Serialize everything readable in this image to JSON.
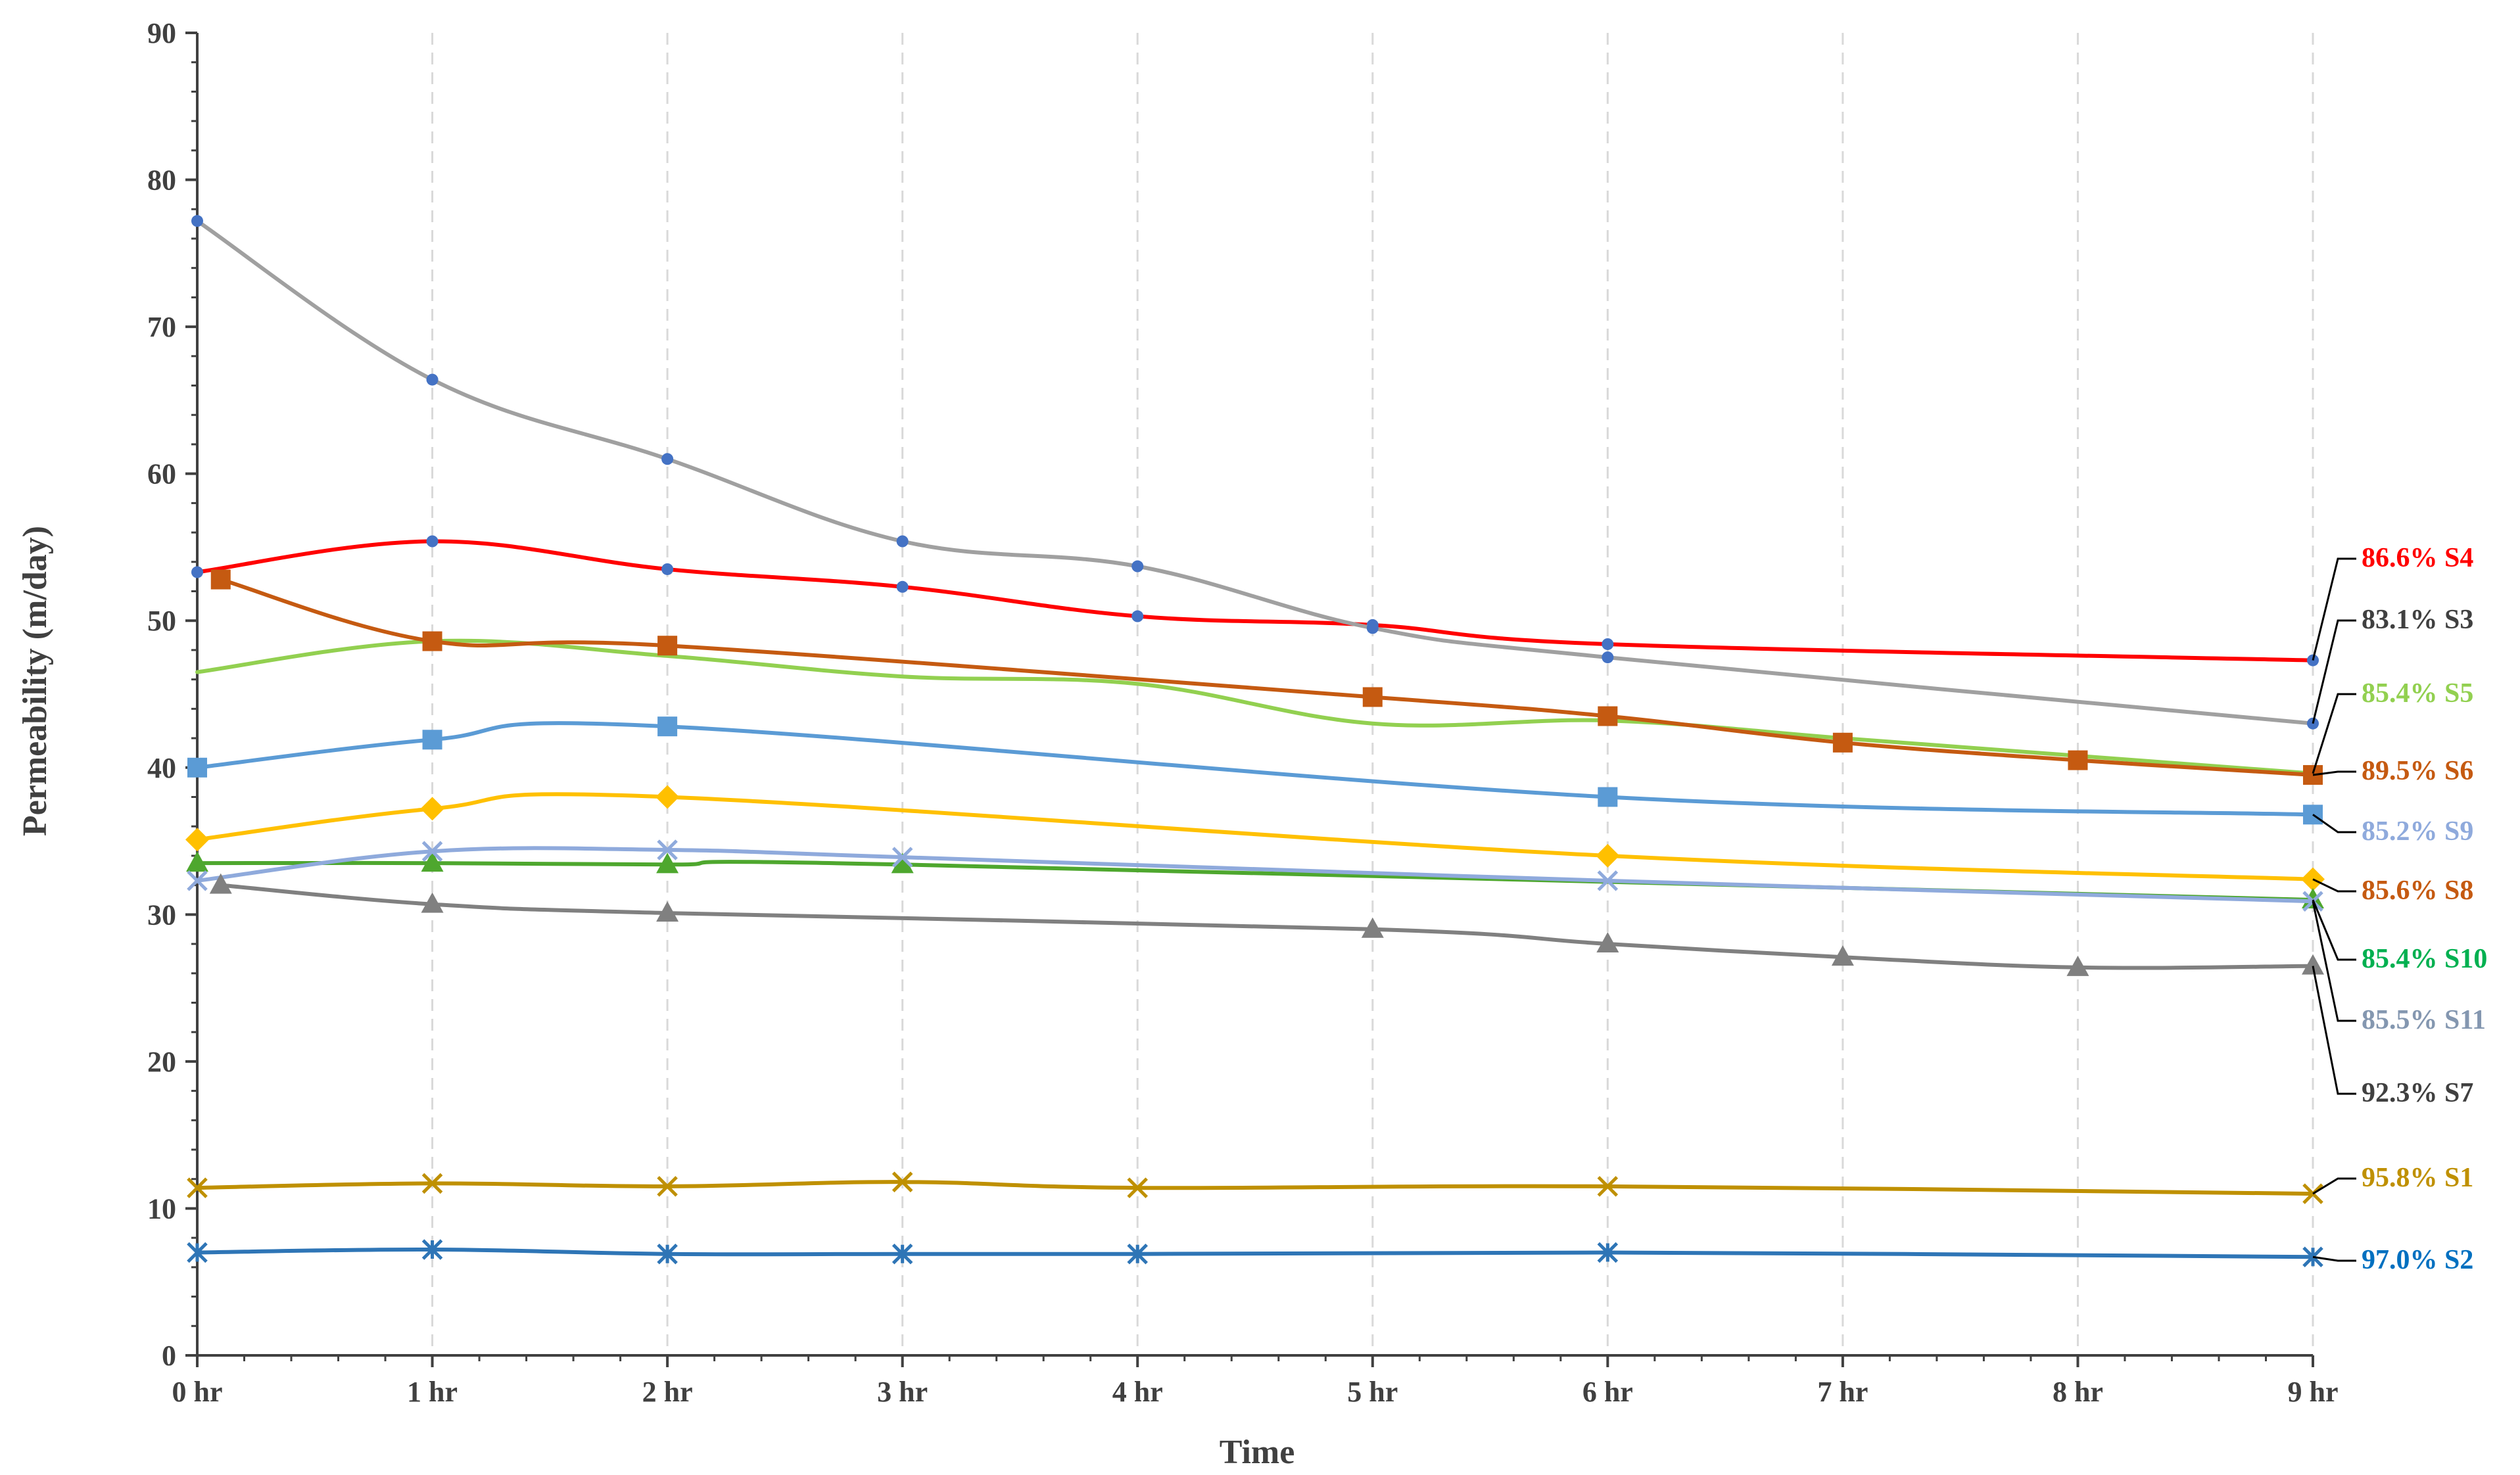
{
  "chart_data": {
    "type": "line",
    "title": "",
    "xlabel": "Time",
    "ylabel": "Permeability (m/day)",
    "categories": [
      "0 hr",
      "1 hr",
      "2 hr",
      "3 hr",
      "4 hr",
      "5 hr",
      "6 hr",
      "7 hr",
      "8 hr",
      "9 hr"
    ],
    "x_range": [
      0,
      9
    ],
    "ylim": [
      0,
      90
    ],
    "y_ticks": [
      "0",
      "10",
      "20",
      "30",
      "40",
      "50",
      "60",
      "70",
      "80",
      "90"
    ],
    "grid": "vertical dashed",
    "legend": "direct labels at right",
    "series": [
      {
        "name": "86.6% S4",
        "color": "#ff0000",
        "label_color": "#ff0000",
        "marker": "dot",
        "points": [
          [
            0,
            53.3
          ],
          [
            1,
            55.4
          ],
          [
            2,
            53.5
          ],
          [
            3,
            52.3
          ],
          [
            4,
            50.3
          ],
          [
            5,
            49.7
          ],
          [
            6,
            48.4
          ],
          [
            9,
            47.3
          ]
        ]
      },
      {
        "name": "83.1% S3",
        "color": "#a0a0a0",
        "label_color": "#404040",
        "marker": "dot",
        "points": [
          [
            0,
            77.2
          ],
          [
            1,
            66.4
          ],
          [
            2,
            61.0
          ],
          [
            3,
            55.4
          ],
          [
            4,
            53.7
          ],
          [
            5,
            49.5
          ],
          [
            6,
            47.5
          ],
          [
            9,
            43.0
          ]
        ]
      },
      {
        "name": "85.4% S5",
        "color": "#92d050",
        "label_color": "#92d050",
        "marker": "none",
        "points": [
          [
            0,
            46.5
          ],
          [
            1,
            48.6
          ],
          [
            2,
            47.6
          ],
          [
            3,
            46.2
          ],
          [
            4,
            45.7
          ],
          [
            5,
            43.0
          ],
          [
            6,
            43.2
          ],
          [
            7,
            42.0
          ],
          [
            8,
            40.8
          ],
          [
            9,
            39.6
          ]
        ]
      },
      {
        "name": "89.5% S6",
        "color": "#c55a11",
        "label_color": "#c55a11",
        "marker": "square",
        "points": [
          [
            0.1,
            52.8
          ],
          [
            1,
            48.6
          ],
          [
            2,
            48.3
          ],
          [
            5,
            44.8
          ],
          [
            6,
            43.5
          ],
          [
            7,
            41.7
          ],
          [
            8,
            40.5
          ],
          [
            9,
            39.5
          ]
        ]
      },
      {
        "name": "85.2% S9",
        "color": "#5b9bd5",
        "label_color": "#8faadc",
        "marker": "square",
        "points": [
          [
            0,
            40.0
          ],
          [
            1,
            41.9
          ],
          [
            2,
            42.8
          ],
          [
            6,
            38.0
          ],
          [
            9,
            36.8
          ]
        ]
      },
      {
        "name": "85.6% S8",
        "color": "#ffc000",
        "label_color": "#c55a11",
        "marker": "diamond",
        "points": [
          [
            0,
            35.1
          ],
          [
            1,
            37.2
          ],
          [
            2,
            38.0
          ],
          [
            6,
            34.0
          ],
          [
            9,
            32.4
          ]
        ]
      },
      {
        "name": "85.4% S10",
        "color": "#4ea72e",
        "label_color": "#00b050",
        "marker": "triangle",
        "points": [
          [
            0,
            33.5
          ],
          [
            1,
            33.5
          ],
          [
            2,
            33.4
          ],
          [
            3,
            33.4
          ],
          [
            9,
            31.0
          ]
        ]
      },
      {
        "name": "85.5% S11",
        "color": "#8faadc",
        "label_color": "#8497b0",
        "marker": "x",
        "points": [
          [
            0,
            32.3
          ],
          [
            1,
            34.3
          ],
          [
            2,
            34.4
          ],
          [
            3,
            33.9
          ],
          [
            6,
            32.3
          ],
          [
            9,
            30.9
          ]
        ]
      },
      {
        "name": "92.3% S7",
        "color": "#808080",
        "label_color": "#404040",
        "marker": "triangle",
        "points": [
          [
            0.1,
            32.0
          ],
          [
            1,
            30.7
          ],
          [
            2,
            30.1
          ],
          [
            5,
            29.0
          ],
          [
            6,
            28.0
          ],
          [
            7,
            27.1
          ],
          [
            8,
            26.4
          ],
          [
            9,
            26.5
          ]
        ]
      },
      {
        "name": "95.8% S1",
        "color": "#bf9000",
        "label_color": "#bf9000",
        "marker": "x",
        "points": [
          [
            0,
            11.4
          ],
          [
            1,
            11.7
          ],
          [
            2,
            11.5
          ],
          [
            3,
            11.8
          ],
          [
            4,
            11.4
          ],
          [
            6,
            11.5
          ],
          [
            9,
            11.0
          ]
        ]
      },
      {
        "name": "97.0% S2",
        "color": "#2e75b6",
        "label_color": "#0070c0",
        "marker": "star",
        "points": [
          [
            0,
            7.0
          ],
          [
            1,
            7.2
          ],
          [
            2,
            6.9
          ],
          [
            3,
            6.9
          ],
          [
            4,
            6.9
          ],
          [
            6,
            7.0
          ],
          [
            9,
            6.7
          ]
        ]
      }
    ]
  }
}
